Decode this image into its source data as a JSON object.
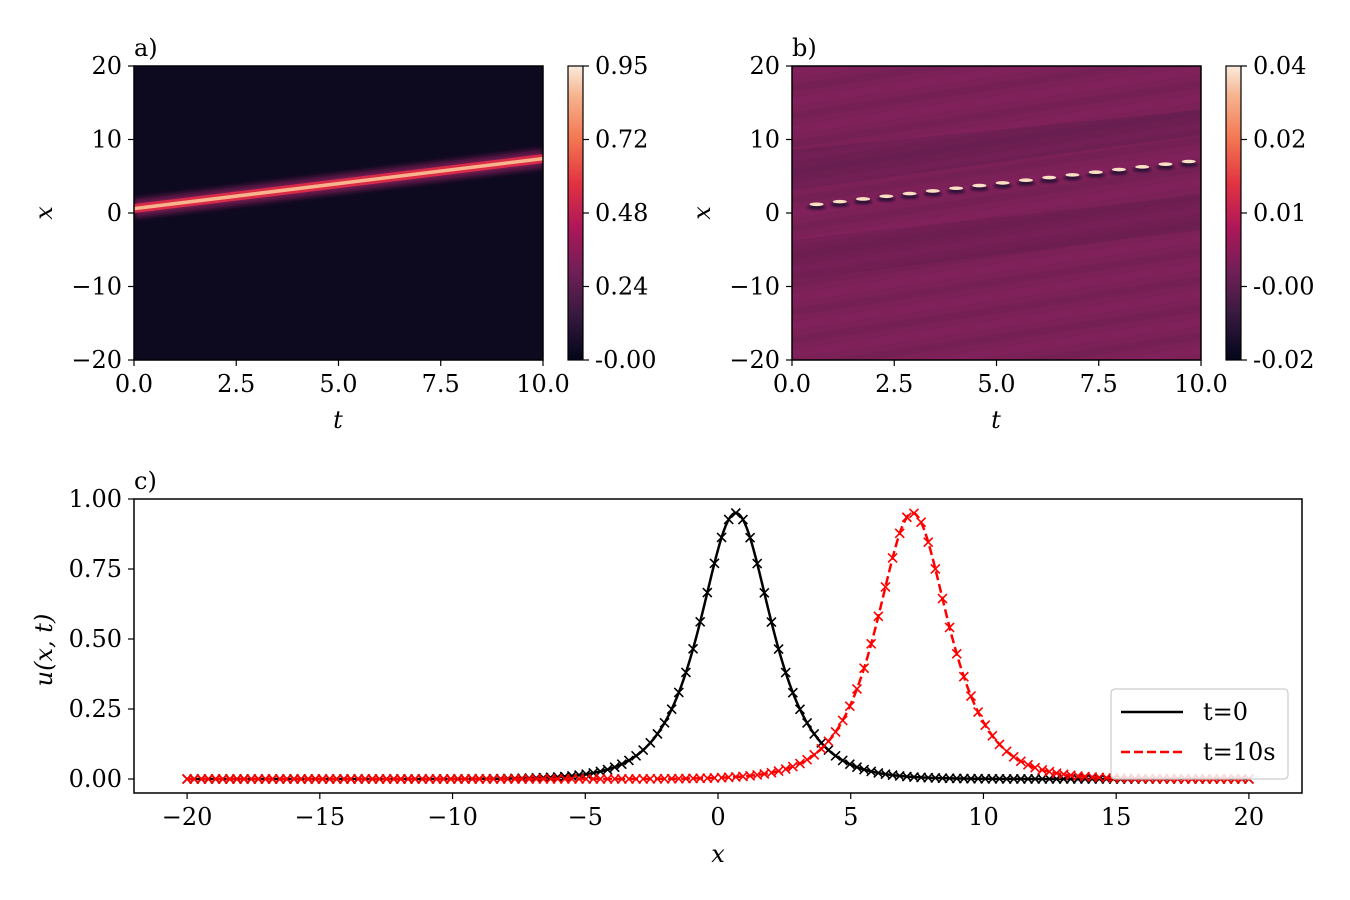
{
  "chart_data": [
    {
      "type": "heatmap",
      "panel_label": "a)",
      "xlabel": "t",
      "ylabel": "x",
      "xlim": [
        0,
        10
      ],
      "ylim": [
        -20,
        20
      ],
      "xticks": [
        "0.0",
        "2.5",
        "5.0",
        "7.5",
        "10.0"
      ],
      "yticks": [
        "−20",
        "−10",
        "0",
        "10",
        "20"
      ],
      "colorbar": {
        "ticks": [
          "-0.00",
          "0.24",
          "0.48",
          "0.72",
          "0.95"
        ],
        "range": [
          0,
          0.95
        ],
        "colormap": "rocket"
      },
      "ridge": {
        "t": [
          0,
          10
        ],
        "x": [
          0.6,
          7.4
        ],
        "peak": 0.95
      }
    },
    {
      "type": "heatmap",
      "panel_label": "b)",
      "xlabel": "t",
      "ylabel": "x",
      "xlim": [
        0,
        10
      ],
      "ylim": [
        -20,
        20
      ],
      "xticks": [
        "0.0",
        "2.5",
        "5.0",
        "7.5",
        "10.0"
      ],
      "yticks": [
        "−20",
        "−10",
        "0",
        "10",
        "20"
      ],
      "colorbar": {
        "ticks": [
          "-0.02",
          "-0.00",
          "0.01",
          "0.02",
          "0.04"
        ],
        "range": [
          -0.02,
          0.04
        ],
        "colormap": "rocket"
      },
      "ridge": {
        "t": [
          0,
          10
        ],
        "x": [
          0.8,
          7.2
        ]
      }
    },
    {
      "type": "line",
      "panel_label": "c)",
      "xlabel": "x",
      "ylabel": "u(x, t)",
      "xlim": [
        -22,
        22
      ],
      "ylim": [
        -0.05,
        1.0
      ],
      "xticks": [
        "−20",
        "−15",
        "−10",
        "−5",
        "0",
        "5",
        "10",
        "15",
        "20"
      ],
      "yticks": [
        "0.00",
        "0.25",
        "0.50",
        "0.75",
        "1.00"
      ],
      "legend_position": "lower-right",
      "series": [
        {
          "name": "t=0",
          "color": "#000000",
          "linestyle": "solid",
          "marker": "x",
          "center": 0.67,
          "amplitude": 0.95,
          "width": 1.2
        },
        {
          "name": "t=10s",
          "color": "#ff0000",
          "linestyle": "dashed",
          "marker": "x",
          "center": 7.33,
          "amplitude": 0.95,
          "width": 1.2
        }
      ],
      "sample_x": {
        "start": -20,
        "end": 20,
        "count": 150
      }
    }
  ]
}
